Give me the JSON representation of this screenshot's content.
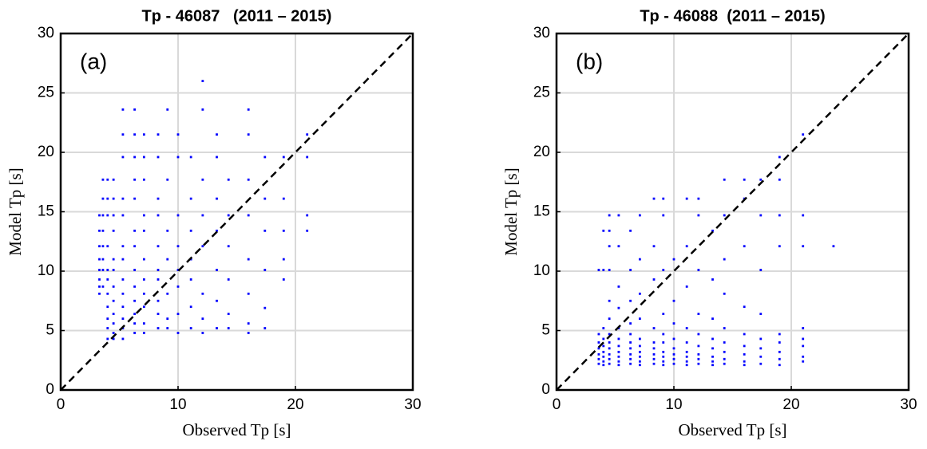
{
  "chart_data": [
    {
      "type": "scatter",
      "title": "Tp - 46087   (2011 – 2015)",
      "annotation": "(a)",
      "xlabel": "Observed Tp [s]",
      "ylabel": "Model Tp [s]",
      "color": "#0000ff",
      "xlim": [
        0,
        30
      ],
      "ylim": [
        0,
        30
      ],
      "xticks": [
        0,
        10,
        20,
        30
      ],
      "yticks": [
        0,
        5,
        10,
        15,
        20,
        25,
        30
      ],
      "grid": true,
      "x": [
        3.3,
        3.3,
        3.3,
        3.3,
        3.3,
        3.3,
        3.3,
        3.3,
        3.6,
        3.6,
        3.6,
        3.6,
        3.6,
        3.6,
        3.6,
        3.6,
        4.0,
        4.0,
        4.0,
        4.0,
        4.0,
        4.0,
        4.0,
        4.0,
        4.0,
        4.0,
        4.0,
        4.5,
        4.5,
        4.5,
        4.5,
        4.5,
        4.5,
        4.5,
        4.5,
        4.5,
        4.5,
        4.5,
        4.5,
        5.3,
        5.3,
        5.3,
        5.3,
        5.3,
        5.3,
        5.3,
        5.3,
        5.3,
        5.3,
        5.3,
        5.3,
        5.3,
        6.3,
        6.3,
        6.3,
        6.3,
        6.3,
        6.3,
        6.3,
        6.3,
        6.3,
        6.3,
        6.3,
        6.3,
        6.3,
        7.1,
        7.1,
        7.1,
        7.1,
        7.1,
        7.1,
        7.1,
        7.1,
        7.1,
        7.1,
        7.1,
        8.3,
        8.3,
        8.3,
        8.3,
        8.3,
        8.3,
        8.3,
        8.3,
        8.3,
        8.3,
        9.1,
        9.1,
        9.1,
        9.1,
        9.1,
        9.1,
        9.1,
        10,
        10,
        10,
        10,
        10,
        10,
        10,
        10,
        11.1,
        11.1,
        11.1,
        11.1,
        11.1,
        11.1,
        11.1,
        12.1,
        12.1,
        12.1,
        12.1,
        12.1,
        12.1,
        12.1,
        12.1,
        13.3,
        13.3,
        13.3,
        13.3,
        13.3,
        13.3,
        13.3,
        14.3,
        14.3,
        14.3,
        14.3,
        14.3,
        14.3,
        16,
        16,
        16,
        16,
        16,
        16,
        16,
        16,
        17.4,
        17.4,
        17.4,
        17.4,
        17.4,
        17.4,
        19,
        19,
        19,
        19,
        19,
        21,
        21,
        21,
        21
      ],
      "values": [
        8.1,
        8.7,
        9.3,
        10.1,
        11.0,
        12.1,
        13.4,
        14.7,
        8.7,
        10.1,
        11.0,
        12.1,
        13.4,
        14.7,
        16.1,
        17.7,
        4.3,
        5.2,
        6.0,
        7.0,
        8.1,
        9.3,
        10.1,
        12.1,
        14.7,
        16.1,
        17.7,
        4.3,
        4.8,
        5.6,
        6.4,
        7.5,
        8.7,
        10.1,
        11.0,
        13.4,
        14.7,
        16.1,
        17.7,
        4.3,
        5.2,
        6.0,
        7.0,
        8.1,
        9.3,
        11.0,
        12.1,
        14.7,
        16.1,
        19.6,
        21.5,
        23.6,
        4.8,
        5.6,
        6.4,
        7.5,
        8.7,
        10.1,
        12.1,
        13.4,
        16.1,
        17.7,
        19.6,
        21.5,
        23.6,
        4.8,
        5.6,
        7.0,
        8.1,
        9.3,
        11.0,
        13.4,
        14.7,
        17.7,
        19.6,
        21.5,
        5.2,
        6.4,
        7.5,
        9.3,
        10.1,
        12.1,
        14.7,
        16.1,
        19.6,
        21.5,
        5.2,
        6.0,
        8.1,
        11.0,
        13.4,
        17.7,
        23.6,
        4.8,
        6.4,
        8.7,
        10.1,
        12.1,
        14.7,
        19.6,
        21.5,
        5.2,
        7.0,
        9.3,
        11.0,
        13.4,
        16.1,
        19.6,
        4.8,
        6.0,
        8.1,
        12.1,
        14.7,
        17.7,
        23.6,
        26.0,
        5.2,
        7.5,
        10.1,
        13.4,
        16.1,
        19.6,
        21.5,
        5.2,
        6.4,
        9.3,
        12.1,
        14.7,
        17.7,
        4.8,
        5.6,
        8.1,
        11.0,
        14.7,
        17.7,
        21.5,
        23.6,
        5.2,
        6.9,
        10.1,
        13.4,
        16.1,
        19.6,
        9.3,
        11.0,
        13.4,
        16.1,
        19.6,
        13.4,
        14.7,
        19.6,
        21.5
      ]
    },
    {
      "type": "scatter",
      "title": "Tp - 46088  (2011 – 2015)",
      "annotation": "(b)",
      "xlabel": "Observed Tp [s]",
      "ylabel": "Model Tp [s]",
      "color": "#0000ff",
      "xlim": [
        0,
        30
      ],
      "ylim": [
        0,
        30
      ],
      "xticks": [
        0,
        10,
        20,
        30
      ],
      "yticks": [
        0,
        5,
        10,
        15,
        20,
        25,
        30
      ],
      "grid": true,
      "x": [
        3.6,
        3.6,
        3.6,
        3.6,
        3.6,
        3.6,
        3.6,
        4.0,
        4.0,
        4.0,
        4.0,
        4.0,
        4.0,
        4.0,
        4.0,
        4.0,
        4.5,
        4.5,
        4.5,
        4.5,
        4.5,
        4.5,
        4.5,
        4.5,
        4.5,
        4.5,
        4.5,
        4.5,
        5.3,
        5.3,
        5.3,
        5.3,
        5.3,
        5.3,
        5.3,
        5.3,
        5.3,
        5.3,
        5.3,
        6.3,
        6.3,
        6.3,
        6.3,
        6.3,
        6.3,
        6.3,
        6.3,
        6.3,
        6.3,
        7.1,
        7.1,
        7.1,
        7.1,
        7.1,
        7.1,
        7.1,
        7.1,
        7.1,
        7.1,
        8.3,
        8.3,
        8.3,
        8.3,
        8.3,
        8.3,
        8.3,
        8.3,
        8.3,
        9.1,
        9.1,
        9.1,
        9.1,
        9.1,
        9.1,
        9.1,
        9.1,
        9.1,
        9.1,
        10,
        10,
        10,
        10,
        10,
        10,
        10,
        10,
        11.1,
        11.1,
        11.1,
        11.1,
        11.1,
        11.1,
        11.1,
        11.1,
        11.1,
        12.1,
        12.1,
        12.1,
        12.1,
        12.1,
        12.1,
        12.1,
        12.1,
        12.1,
        13.3,
        13.3,
        13.3,
        13.3,
        13.3,
        13.3,
        13.3,
        13.3,
        14.3,
        14.3,
        14.3,
        14.3,
        14.3,
        14.3,
        14.3,
        14.3,
        14.3,
        16,
        16,
        16,
        16,
        16,
        16,
        16,
        16,
        16,
        17.4,
        17.4,
        17.4,
        17.4,
        17.4,
        17.4,
        17.4,
        17.4,
        19,
        19,
        19,
        19,
        19,
        19,
        19,
        19,
        19,
        21,
        21,
        21,
        21,
        21,
        21,
        21,
        21,
        23.6
      ],
      "values": [
        2.2,
        2.6,
        3.0,
        3.5,
        4.0,
        4.7,
        10.1,
        2.1,
        2.4,
        2.8,
        3.2,
        3.7,
        4.3,
        5.2,
        10.1,
        13.4,
        2.2,
        2.6,
        3.0,
        3.5,
        4.0,
        4.7,
        6.0,
        7.5,
        10.1,
        12.1,
        13.4,
        14.7,
        2.1,
        2.4,
        2.8,
        3.2,
        3.7,
        4.3,
        5.2,
        6.9,
        8.7,
        12.1,
        14.7,
        2.2,
        2.6,
        3.0,
        3.5,
        4.0,
        4.7,
        5.6,
        7.5,
        10.1,
        13.4,
        2.1,
        2.4,
        2.8,
        3.2,
        3.7,
        4.3,
        6.0,
        8.1,
        11.0,
        14.7,
        2.2,
        2.6,
        3.0,
        3.5,
        4.0,
        5.2,
        9.3,
        12.1,
        16.1,
        2.1,
        2.4,
        2.8,
        3.2,
        4.0,
        4.7,
        6.4,
        10.1,
        14.7,
        16.1,
        2.2,
        2.6,
        3.0,
        3.5,
        4.3,
        5.6,
        7.5,
        11.0,
        2.1,
        2.4,
        2.8,
        3.2,
        4.0,
        5.2,
        8.7,
        12.1,
        16.1,
        2.2,
        2.6,
        3.0,
        3.7,
        4.7,
        6.4,
        10.1,
        14.7,
        16.1,
        2.1,
        2.4,
        2.8,
        3.5,
        4.3,
        6.0,
        9.3,
        13.4,
        2.2,
        2.6,
        3.2,
        4.0,
        5.2,
        8.1,
        11.0,
        14.7,
        17.7,
        2.1,
        2.4,
        3.0,
        3.7,
        4.7,
        7.0,
        12.1,
        16.1,
        17.7,
        2.2,
        2.8,
        3.5,
        4.3,
        6.4,
        10.1,
        14.7,
        17.7,
        2.1,
        2.6,
        3.2,
        4.0,
        4.7,
        12.1,
        14.7,
        17.7,
        19.6,
        2.4,
        2.8,
        3.7,
        4.3,
        5.2,
        12.1,
        14.7,
        21.5,
        12.1
      ]
    }
  ]
}
